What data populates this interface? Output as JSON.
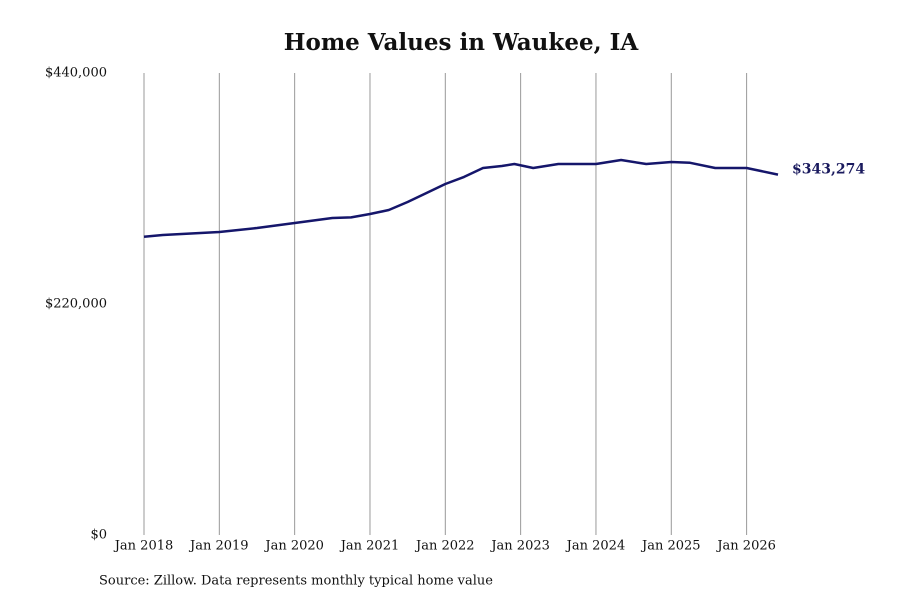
{
  "chart_data": {
    "type": "line",
    "title": "Home Values in Waukee, IA",
    "source": "Source: Zillow. Data represents monthly typical home value",
    "color": "#15166b",
    "x": [
      "2018-01",
      "2018-04",
      "2019-01",
      "2019-07",
      "2020-01",
      "2020-07",
      "2020-10",
      "2021-01",
      "2021-04",
      "2021-07",
      "2021-10",
      "2022-01",
      "2022-04",
      "2022-07",
      "2022-10",
      "2022-12",
      "2023-03",
      "2023-07",
      "2024-01",
      "2024-05",
      "2024-09",
      "2025-01",
      "2025-04",
      "2025-08",
      "2026-01",
      "2026-06"
    ],
    "values": [
      284000,
      285700,
      288600,
      292400,
      297100,
      301900,
      302500,
      305700,
      309500,
      317100,
      325700,
      334300,
      341000,
      349500,
      351400,
      353300,
      349500,
      353300,
      353300,
      357100,
      353300,
      355200,
      354500,
      349500,
      349500,
      343274
    ],
    "value_labels": [
      null,
      null,
      null,
      null,
      null,
      null,
      null,
      null,
      null,
      null,
      null,
      null,
      null,
      null,
      null,
      null,
      null,
      null,
      null,
      null,
      null,
      null,
      null,
      null,
      null,
      "$343,274"
    ],
    "xlim": [
      "2018-01",
      "2026-06"
    ],
    "xticks": [
      {
        "value": "2018-01",
        "label": "Jan 2018"
      },
      {
        "value": "2019-01",
        "label": "Jan 2019"
      },
      {
        "value": "2020-01",
        "label": "Jan 2020"
      },
      {
        "value": "2021-01",
        "label": "Jan 2021"
      },
      {
        "value": "2022-01",
        "label": "Jan 2022"
      },
      {
        "value": "2023-01",
        "label": "Jan 2023"
      },
      {
        "value": "2024-01",
        "label": "Jan 2024"
      },
      {
        "value": "2025-01",
        "label": "Jan 2025"
      },
      {
        "value": "2026-01",
        "label": "Jan 2026"
      }
    ],
    "ylim": [
      0,
      440000
    ],
    "yticks": [
      {
        "value": 0,
        "label": "$0"
      },
      {
        "value": 220000,
        "label": "$220,000"
      },
      {
        "value": 440000,
        "label": "$440,000"
      }
    ],
    "grid": "x"
  }
}
